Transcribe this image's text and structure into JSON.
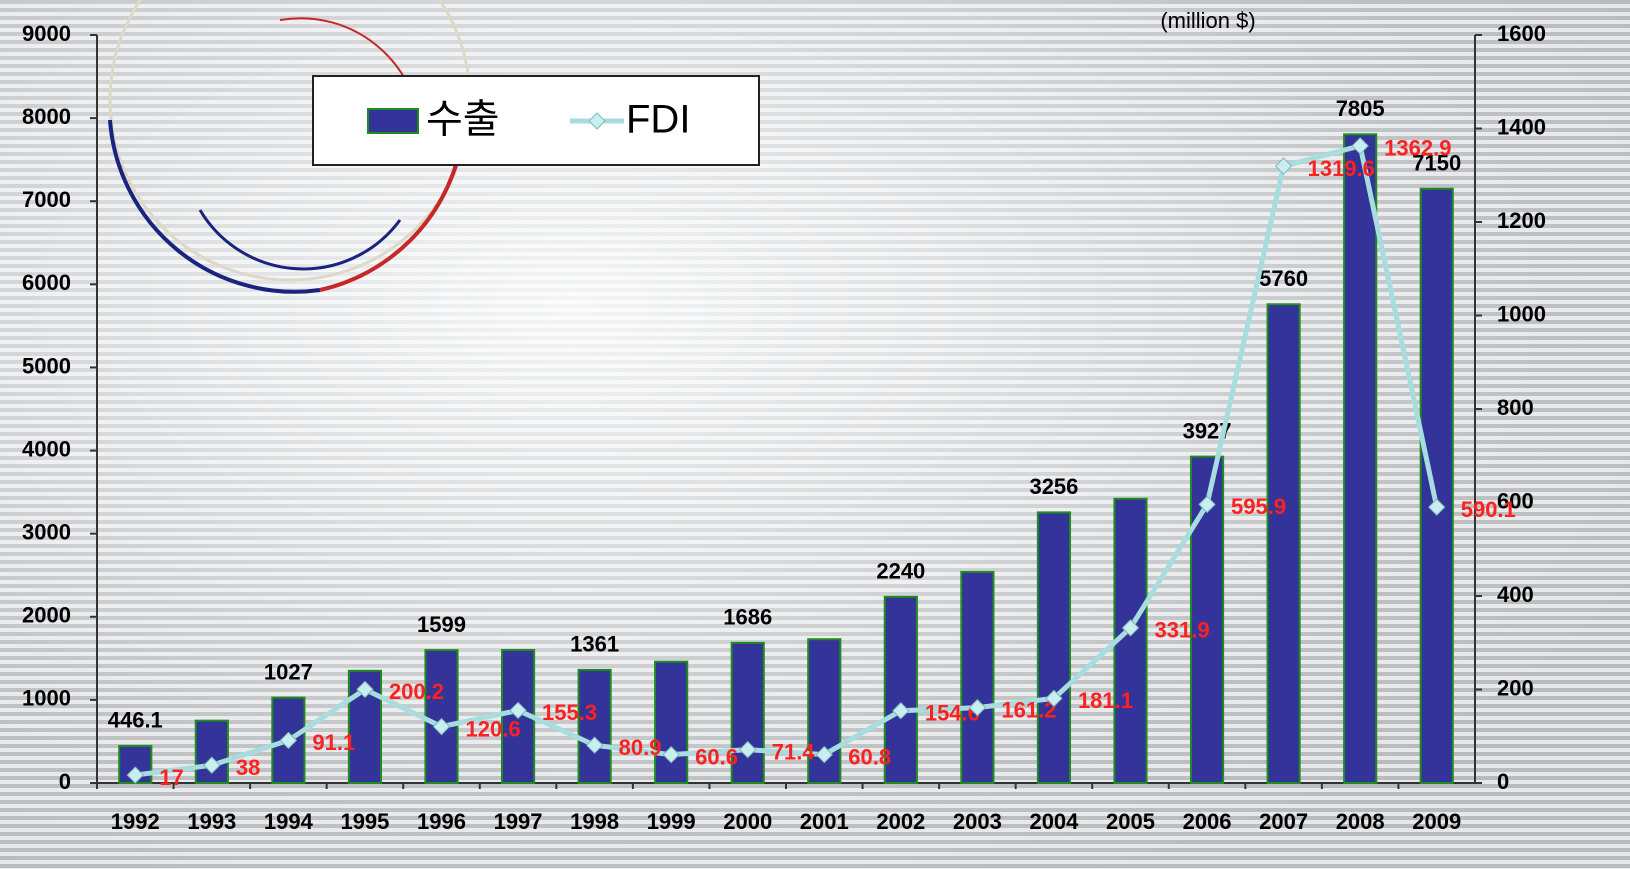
{
  "chart_data": {
    "type": "bar-line",
    "unit_label": "(million $)",
    "categories": [
      "1992",
      "1993",
      "1994",
      "1995",
      "1996",
      "1997",
      "1998",
      "1999",
      "2000",
      "2001",
      "2002",
      "2003",
      "2004",
      "2005",
      "2006",
      "2007",
      "2008",
      "2009"
    ],
    "series": [
      {
        "name": "수출",
        "type": "bar",
        "color": "#333399",
        "edge_color": "#1e8c1e",
        "label_color": "#000000",
        "values": [
          446.1,
          750,
          1027,
          1350,
          1599,
          1600,
          1361,
          1460,
          1686,
          1730,
          2240,
          2540,
          3256,
          3420,
          3927,
          5760,
          7805,
          7150
        ],
        "show_labels": [
          true,
          false,
          true,
          false,
          true,
          false,
          true,
          false,
          true,
          false,
          true,
          false,
          true,
          false,
          true,
          true,
          true,
          true
        ]
      },
      {
        "name": "FDI",
        "type": "line",
        "axis": "y2",
        "color": "#a8dde0",
        "marker_color": "#c8eef0",
        "label_color": "#ff2020",
        "values": [
          17,
          38,
          91.1,
          200.2,
          120.6,
          155.3,
          80.9,
          60.6,
          71.4,
          60.8,
          154.6,
          161.2,
          181.1,
          331.9,
          595.9,
          1319.6,
          1362.9,
          590.1
        ],
        "show_labels": [
          true,
          true,
          true,
          true,
          true,
          true,
          true,
          true,
          true,
          true,
          true,
          true,
          true,
          true,
          true,
          true,
          true,
          true
        ]
      }
    ],
    "ylim": [
      0,
      9000
    ],
    "yticks": [
      0,
      1000,
      2000,
      3000,
      4000,
      5000,
      6000,
      7000,
      8000,
      9000
    ],
    "y2lim": [
      0,
      1600
    ],
    "y2ticks": [
      0,
      200,
      400,
      600,
      800,
      1000,
      1200,
      1400,
      1600
    ],
    "grid": false,
    "legend": "top-left"
  }
}
